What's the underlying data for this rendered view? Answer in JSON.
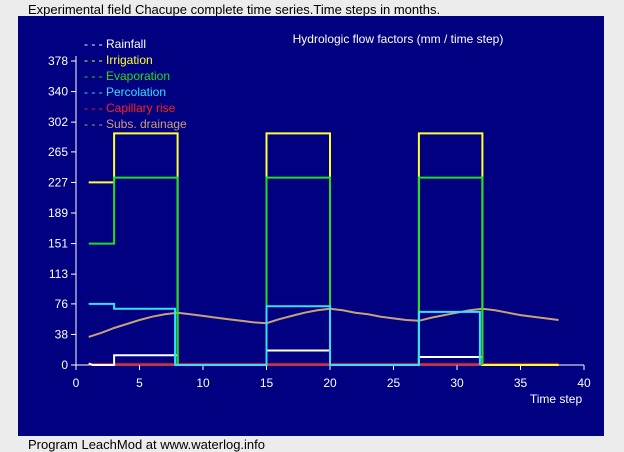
{
  "top_caption": "Experimental field Chacupe complete time series.Time steps in months.",
  "bottom_caption": "Program LeachMod at www.waterlog.info",
  "colors": {
    "background": "#000080",
    "axis": "#ffffff",
    "rainfall": "#ffffff",
    "irrigation": "#ffff33",
    "evaporation": "#22dd22",
    "percolation": "#33e0ff",
    "capillary_rise": "#ff2020",
    "subs_drainage": "#c8a07a"
  },
  "chart_data": {
    "type": "line",
    "title": "Hydrologic flow factors (mm / time step)",
    "xlabel": "Time step",
    "ylabel": "",
    "xlim": [
      0,
      40
    ],
    "ylim": [
      0,
      378
    ],
    "xticks": [
      0,
      5,
      10,
      15,
      20,
      25,
      30,
      35,
      40
    ],
    "yticks": [
      0,
      38,
      76,
      113,
      151,
      189,
      227,
      265,
      302,
      340,
      378
    ],
    "legend_position": "top-left",
    "series": [
      {
        "name": "Rainfall",
        "color_key": "rainfall",
        "x": [
          1,
          1.3,
          3,
          3,
          8,
          8,
          15,
          15,
          20,
          20,
          27,
          27,
          32,
          32,
          38
        ],
        "y": [
          2,
          0,
          0,
          12,
          12,
          0,
          0,
          18,
          18,
          0,
          0,
          10,
          10,
          0,
          0
        ]
      },
      {
        "name": "Irrigation",
        "color_key": "irrigation",
        "x": [
          1,
          3,
          3,
          8,
          8,
          15,
          15,
          20,
          20,
          27,
          27,
          32,
          32,
          38
        ],
        "y": [
          227,
          227,
          288,
          288,
          0,
          0,
          288,
          288,
          0,
          0,
          288,
          288,
          0,
          0
        ]
      },
      {
        "name": "Evaporation",
        "color_key": "evaporation",
        "x": [
          1,
          3,
          3,
          8,
          8,
          15,
          15,
          20,
          20,
          27,
          27,
          32,
          32
        ],
        "y": [
          151,
          151,
          233,
          233,
          0,
          0,
          233,
          233,
          0,
          0,
          233,
          233,
          0
        ]
      },
      {
        "name": "Percolation",
        "color_key": "percolation",
        "x": [
          1,
          3,
          3,
          7.8,
          7.8,
          15,
          15,
          20,
          20,
          27,
          27,
          31.8,
          31.8
        ],
        "y": [
          76,
          76,
          70,
          70,
          0,
          0,
          73,
          73,
          0,
          0,
          66,
          66,
          0
        ]
      },
      {
        "name": "Capillary rise",
        "color_key": "capillary_rise",
        "x": [
          1,
          38
        ],
        "y": [
          1,
          1
        ]
      },
      {
        "name": "Subs. drainage",
        "color_key": "subs_drainage",
        "x": [
          1,
          2,
          3,
          4,
          5,
          6,
          7,
          8,
          9,
          10,
          11,
          12,
          13,
          14,
          15,
          16,
          17,
          18,
          19,
          20,
          21,
          22,
          23,
          24,
          25,
          26,
          27,
          28,
          29,
          30,
          31,
          32,
          33,
          34,
          35,
          36,
          37,
          38
        ],
        "y": [
          35,
          40,
          46,
          51,
          56,
          60,
          63,
          65,
          63,
          61,
          59,
          57,
          55,
          53,
          52,
          57,
          61,
          65,
          68,
          70,
          68,
          65,
          63,
          60,
          58,
          56,
          55,
          59,
          62,
          65,
          68,
          70,
          68,
          65,
          62,
          60,
          58,
          56
        ]
      }
    ]
  }
}
